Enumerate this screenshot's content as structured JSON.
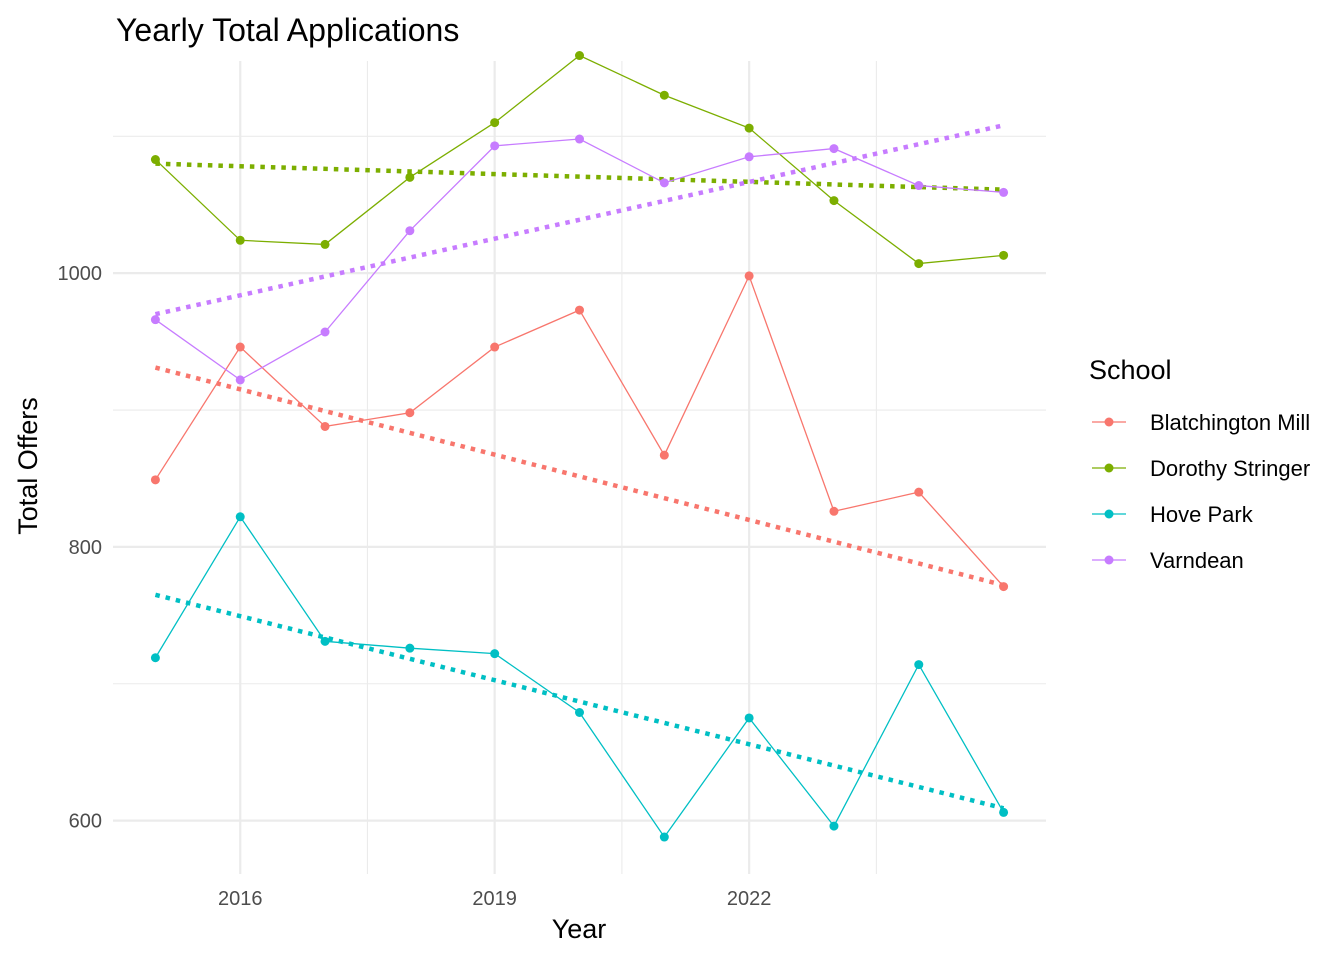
{
  "chart_data": {
    "type": "line",
    "title": "Yearly Total Applications",
    "xlabel": "Year",
    "ylabel": "Total Offers",
    "x": [
      2015,
      2016,
      2017,
      2018,
      2019,
      2020,
      2021,
      2022,
      2023,
      2024,
      2025
    ],
    "x_ticks": [
      2016,
      2019,
      2022
    ],
    "y_ticks": [
      600,
      800,
      1000
    ],
    "xlim": [
      2014.5,
      2025.5
    ],
    "ylim": [
      561,
      1155
    ],
    "grid": true,
    "legend": {
      "title": "School",
      "position": "right"
    },
    "series": [
      {
        "name": "Blatchington Mill",
        "color": "#F8766D",
        "values": [
          849,
          946,
          888,
          898,
          946,
          973,
          867,
          998,
          826,
          840,
          771
        ],
        "trend": [
          931,
          772
        ]
      },
      {
        "name": "Dorothy Stringer",
        "color": "#7CAE00",
        "values": [
          1083,
          1024,
          1021,
          1070,
          1110,
          1159,
          1130,
          1106,
          1053,
          1007,
          1013
        ],
        "trend": [
          1080,
          1061
        ]
      },
      {
        "name": "Hove Park",
        "color": "#00BFC4",
        "values": [
          719,
          822,
          731,
          726,
          722,
          679,
          588,
          675,
          596,
          714,
          606
        ],
        "trend": [
          765,
          609
        ]
      },
      {
        "name": "Varndean",
        "color": "#C77CFF",
        "values": [
          966,
          922,
          957,
          1031,
          1093,
          1098,
          1066,
          1085,
          1091,
          1064,
          1059
        ],
        "trend": [
          970,
          1108
        ]
      }
    ]
  }
}
